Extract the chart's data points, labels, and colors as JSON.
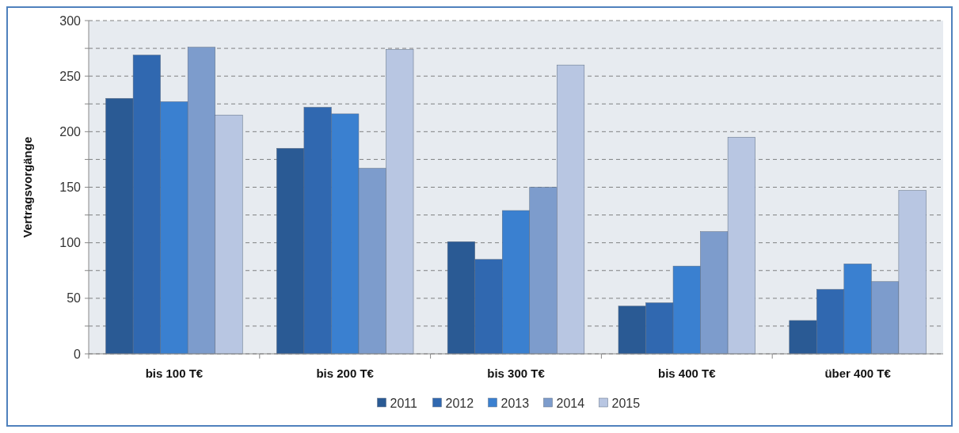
{
  "chart_data": {
    "type": "bar",
    "ylabel": "Vertragsvorgänge",
    "categories": [
      "bis 100 T€",
      "bis 200 T€",
      "bis 300 T€",
      "bis 400 T€",
      "über 400 T€"
    ],
    "series": [
      {
        "name": "2011",
        "color": "#2a5a94",
        "values": [
          230,
          185,
          101,
          43,
          30
        ]
      },
      {
        "name": "2012",
        "color": "#3068b0",
        "values": [
          269,
          222,
          85,
          46,
          58
        ]
      },
      {
        "name": "2013",
        "color": "#3a80d0",
        "values": [
          227,
          216,
          129,
          79,
          81
        ]
      },
      {
        "name": "2014",
        "color": "#7d9ccc",
        "values": [
          276,
          167,
          150,
          110,
          65
        ]
      },
      {
        "name": "2015",
        "color": "#b8c6e2",
        "values": [
          215,
          274,
          260,
          195,
          147
        ]
      }
    ],
    "ylim": [
      0,
      300
    ],
    "yticks": [
      0,
      {
        "value": 25,
        "label": null
      },
      50,
      {
        "value": 75,
        "label": null
      },
      100,
      {
        "value": 125,
        "label": null
      },
      150,
      {
        "value": 175,
        "label": null
      },
      200,
      {
        "value": 225,
        "label": null
      },
      250,
      {
        "value": 275,
        "label": null
      },
      300
    ],
    "grid": "y",
    "legend": "bottom"
  }
}
